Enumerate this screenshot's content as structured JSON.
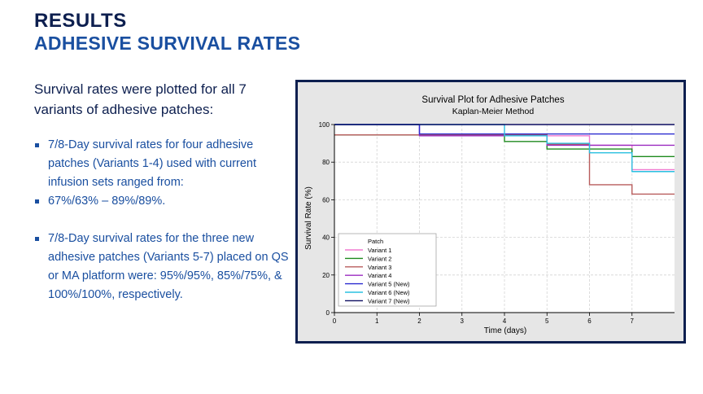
{
  "heading": {
    "title": "RESULTS",
    "subtitle": "ADHESIVE SURVIVAL RATES"
  },
  "intro": "Survival rates were plotted for all 7 variants of adhesive patches:",
  "bullets": [
    "7/8-Day survival rates for four adhesive patches (Variants 1-4) used with current infusion sets ranged from:",
    " 67%/63% – 89%/89%.",
    "7/8-Day survival rates for the three new adhesive patches (Variants 5-7) placed on QS or MA platform were: 95%/95%, 85%/75%, & 100%/100%, respectively."
  ],
  "chart_data": {
    "type": "line",
    "step": true,
    "title": "Survival Plot for Adhesive Patches",
    "subtitle": "Kaplan-Meier Method",
    "xlabel": "Time (days)",
    "ylabel": "Survival Rate (%)",
    "xlim": [
      0,
      8
    ],
    "ylim": [
      0,
      100
    ],
    "xticks": [
      0,
      1,
      2,
      3,
      4,
      5,
      6,
      7
    ],
    "yticks": [
      0,
      20,
      40,
      60,
      80,
      100
    ],
    "grid": true,
    "legend_title": "Patch",
    "legend_position": "bottom-left",
    "series": [
      {
        "name": "Variant 1",
        "color": "#f07ad0",
        "x": [
          0,
          3,
          6,
          7
        ],
        "y": [
          94.5,
          94,
          89,
          76
        ]
      },
      {
        "name": "Variant 2",
        "color": "#1e8a1e",
        "x": [
          0,
          4,
          5,
          7
        ],
        "y": [
          94.5,
          91,
          87,
          83
        ]
      },
      {
        "name": "Variant 3",
        "color": "#b85c5c",
        "x": [
          0,
          5,
          6,
          7
        ],
        "y": [
          94.5,
          89.5,
          68,
          63
        ]
      },
      {
        "name": "Variant 4",
        "color": "#9b2bc0",
        "x": [
          0,
          2,
          5,
          6
        ],
        "y": [
          100,
          94,
          89,
          89
        ]
      },
      {
        "name": "Variant 5 (New)",
        "color": "#2a2ad0",
        "x": [
          0,
          2,
          6
        ],
        "y": [
          100,
          95,
          95
        ]
      },
      {
        "name": "Variant 6 (New)",
        "color": "#2ac0e0",
        "x": [
          0,
          4,
          5,
          6,
          7
        ],
        "y": [
          100,
          94,
          90,
          85,
          75
        ]
      },
      {
        "name": "Variant 7 (New)",
        "color": "#0d0d60",
        "x": [
          0
        ],
        "y": [
          100
        ]
      }
    ]
  }
}
